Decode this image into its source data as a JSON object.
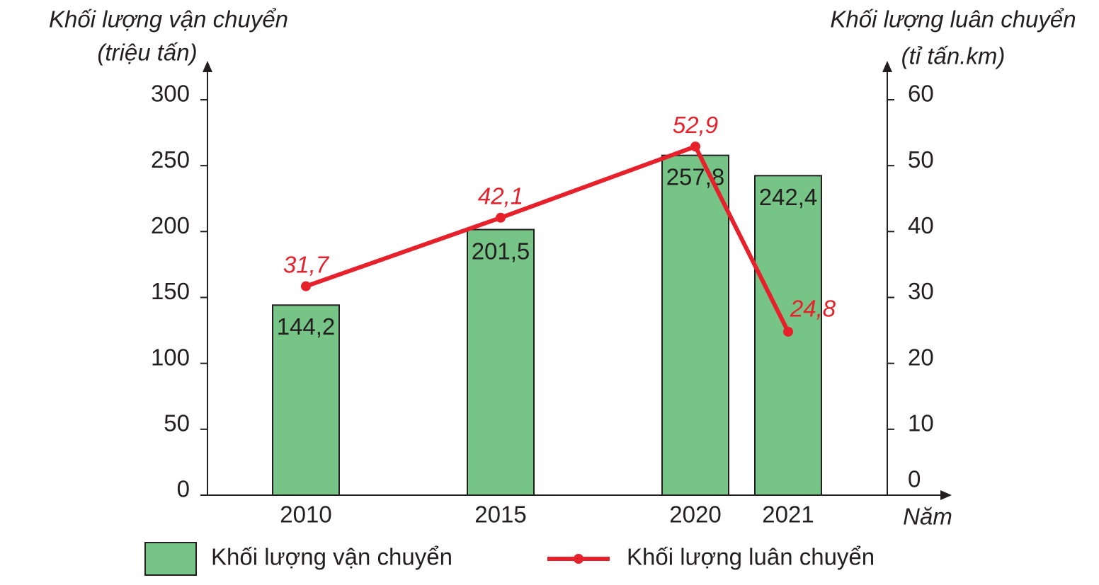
{
  "chart_data": {
    "type": "bar",
    "y_title": "Khối lượng vận chuyển",
    "y_unit": "(triệu tấn)",
    "y2_title": "Khối lượng luân chuyển",
    "y2_unit": "(tỉ tấn.km)",
    "x_title": "Năm",
    "categories": [
      "2010",
      "2015",
      "2020",
      "2021"
    ],
    "series": [
      {
        "name": "Khối lượng vận chuyển",
        "type": "bar",
        "color": "#76c486",
        "values": [
          144.2,
          201.5,
          257.8,
          242.4
        ],
        "value_labels": [
          "144,2",
          "201,5",
          "257,8",
          "242,4"
        ]
      },
      {
        "name": "Khối lượng luân chuyển",
        "type": "line",
        "axis": "y2",
        "color": "#e6212b",
        "values": [
          31.7,
          42.1,
          52.9,
          24.8
        ],
        "value_labels": [
          "31,7",
          "42,1",
          "52,9",
          "24,8"
        ]
      }
    ],
    "ylim": [
      0,
      300
    ],
    "yticks": [
      0,
      50,
      100,
      150,
      200,
      250,
      300
    ],
    "y2lim": [
      0,
      60
    ],
    "y2ticks": [
      0,
      10,
      20,
      30,
      40,
      50,
      60
    ]
  }
}
